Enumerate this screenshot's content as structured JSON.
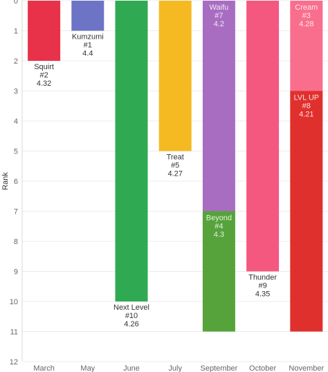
{
  "chart_data": {
    "type": "bar",
    "style": "floating stacked bars (Gantt-like ranges on an inverted rank axis)",
    "ylabel": "Rank",
    "ylim": [
      0,
      12
    ],
    "y_axis_inverted": true,
    "y_ticks": [
      "0",
      "1",
      "2",
      "3",
      "4",
      "5",
      "6",
      "7",
      "8",
      "9",
      "10",
      "11",
      "12"
    ],
    "categories": [
      "March",
      "May",
      "June",
      "July",
      "September",
      "October",
      "November"
    ],
    "grid": "horizontal gridlines at each rank",
    "legend": "none",
    "bars": [
      {
        "category": "March",
        "from": 0,
        "to": 2,
        "color": "#e8324a",
        "name": "Squirt",
        "rank_label": "#2",
        "score": "4.32",
        "label_position": "below"
      },
      {
        "category": "May",
        "from": 0,
        "to": 1,
        "color": "#6e74c5",
        "name": "Kumzumi",
        "rank_label": "#1",
        "score": "4.4",
        "label_position": "below"
      },
      {
        "category": "June",
        "from": 0,
        "to": 10,
        "color": "#2faa52",
        "name": "Next Level",
        "rank_label": "#10",
        "score": "4.26",
        "label_position": "below"
      },
      {
        "category": "July",
        "from": 0,
        "to": 5,
        "color": "#f5b922",
        "name": "Treat",
        "rank_label": "#5",
        "score": "4.27",
        "label_position": "below"
      },
      {
        "category": "September",
        "from": 0,
        "to": 7,
        "color": "#a86dc1",
        "name": "Waifu",
        "rank_label": "#7",
        "score": "4.2",
        "label_position": "inside"
      },
      {
        "category": "September",
        "from": 7,
        "to": 11,
        "color": "#55a33a",
        "name": "Beyond",
        "rank_label": "#4",
        "score": "4.3",
        "label_position": "inside"
      },
      {
        "category": "October",
        "from": 0,
        "to": 9,
        "color": "#f5587e",
        "name": "Thunder",
        "rank_label": "#9",
        "score": "4.35",
        "label_position": "below"
      },
      {
        "category": "November",
        "from": 0,
        "to": 3,
        "color": "#fa6e8d",
        "name": "Cream",
        "rank_label": "#3",
        "score": "4.28",
        "label_position": "inside"
      },
      {
        "category": "November",
        "from": 3,
        "to": 11,
        "color": "#e0302e",
        "name": "LVL UP",
        "rank_label": "#8",
        "score": "4.21",
        "label_position": "inside"
      }
    ]
  }
}
